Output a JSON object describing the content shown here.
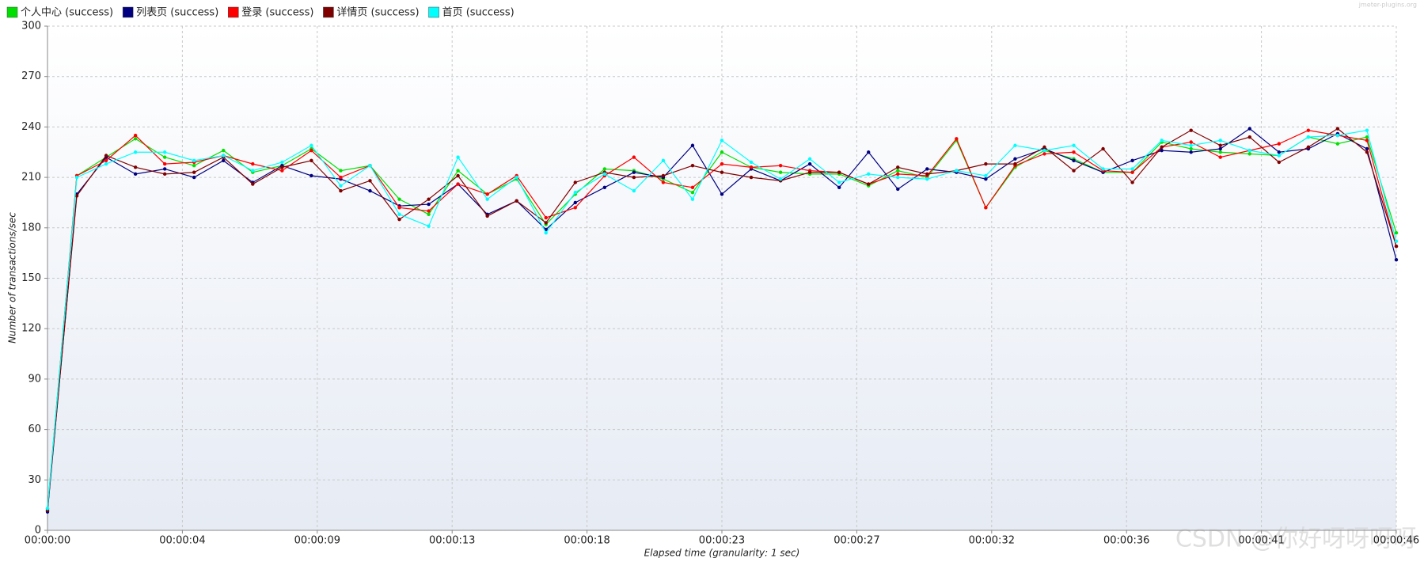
{
  "chart_data": {
    "type": "line",
    "watermark": "jmeter-plugins.org",
    "credit": "CSDN @你好呀呀呀呀",
    "xlabel": "Elapsed time (granularity: 1 sec)",
    "ylabel": "Number of transactions/sec",
    "x": [
      0,
      1,
      2,
      3,
      4,
      5,
      6,
      7,
      8,
      9,
      10,
      11,
      12,
      13,
      14,
      15,
      16,
      17,
      18,
      19,
      20,
      21,
      22,
      23,
      24,
      25,
      26,
      27,
      28,
      29,
      30,
      31,
      32,
      33,
      34,
      35,
      36,
      37,
      38,
      39,
      40,
      41,
      42,
      43,
      44,
      45,
      46
    ],
    "xlim": [
      0,
      46
    ],
    "xticks": [
      {
        "value": 0,
        "label": "00:00:00"
      },
      {
        "value": 4.6,
        "label": "00:00:04"
      },
      {
        "value": 9.2,
        "label": "00:00:09"
      },
      {
        "value": 13.8,
        "label": "00:00:13"
      },
      {
        "value": 18.4,
        "label": "00:00:18"
      },
      {
        "value": 23,
        "label": "00:00:23"
      },
      {
        "value": 27.6,
        "label": "00:00:27"
      },
      {
        "value": 32.2,
        "label": "00:00:32"
      },
      {
        "value": 36.8,
        "label": "00:00:36"
      },
      {
        "value": 41.4,
        "label": "00:00:41"
      },
      {
        "value": 46,
        "label": "00:00:46"
      }
    ],
    "ylim": [
      0,
      300
    ],
    "yticks": [
      0,
      30,
      60,
      90,
      120,
      150,
      180,
      210,
      240,
      270,
      300
    ],
    "grid": true,
    "legend": "top-left",
    "series": [
      {
        "name": "个人中心 (success)",
        "color": "#00e000",
        "values": [
          13,
          211,
          222,
          233,
          222,
          217,
          226,
          213,
          217,
          227,
          214,
          217,
          197,
          188,
          214,
          200,
          209,
          182,
          200,
          215,
          214,
          209,
          201,
          225,
          216,
          213,
          212,
          212,
          205,
          214,
          210,
          232,
          192,
          216,
          226,
          221,
          213,
          213,
          231,
          227,
          225,
          224,
          223,
          234,
          230,
          234,
          177
        ]
      },
      {
        "name": "列表页 (success)",
        "color": "#000080",
        "values": [
          11,
          200,
          222,
          212,
          215,
          210,
          220,
          207,
          217,
          211,
          209,
          202,
          193,
          194,
          206,
          188,
          196,
          179,
          195,
          204,
          213,
          210,
          229,
          200,
          215,
          208,
          218,
          204,
          225,
          203,
          215,
          213,
          209,
          221,
          227,
          220,
          213,
          220,
          226,
          225,
          227,
          239,
          225,
          227,
          236,
          227,
          161
        ]
      },
      {
        "name": "登录 (success)",
        "color": "#ff0000",
        "values": [
          12,
          211,
          220,
          235,
          218,
          219,
          223,
          218,
          214,
          226,
          210,
          217,
          192,
          190,
          206,
          200,
          211,
          186,
          192,
          211,
          222,
          207,
          204,
          218,
          216,
          217,
          214,
          213,
          206,
          212,
          211,
          233,
          192,
          217,
          224,
          225,
          214,
          213,
          228,
          231,
          222,
          226,
          230,
          238,
          235,
          232,
          169
        ]
      },
      {
        "name": "详情页 (success)",
        "color": "#800000",
        "values": [
          12,
          199,
          223,
          216,
          212,
          213,
          222,
          206,
          216,
          220,
          202,
          208,
          185,
          197,
          211,
          187,
          196,
          183,
          207,
          213,
          210,
          211,
          217,
          213,
          210,
          208,
          213,
          213,
          206,
          216,
          212,
          214,
          218,
          218,
          228,
          214,
          227,
          207,
          228,
          238,
          229,
          234,
          219,
          228,
          239,
          225,
          169
        ]
      },
      {
        "name": "首页 (success)",
        "color": "#00ffff",
        "values": [
          13,
          210,
          218,
          225,
          225,
          220,
          223,
          214,
          219,
          229,
          205,
          217,
          188,
          181,
          222,
          197,
          210,
          177,
          201,
          212,
          202,
          220,
          197,
          232,
          219,
          209,
          221,
          207,
          212,
          210,
          209,
          214,
          211,
          229,
          226,
          229,
          215,
          215,
          232,
          229,
          232,
          226,
          223,
          234,
          235,
          238,
          172
        ]
      }
    ]
  }
}
